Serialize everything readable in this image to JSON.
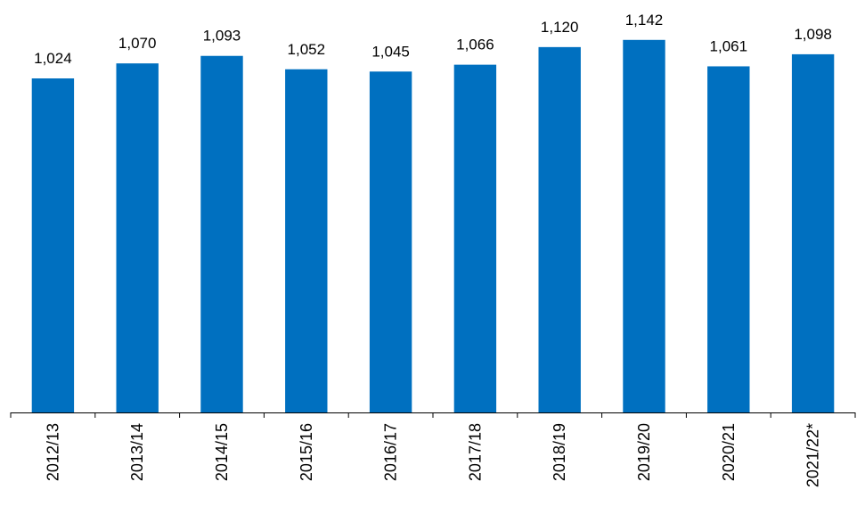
{
  "chart_data": {
    "type": "bar",
    "title": "",
    "xlabel": "",
    "ylabel": "",
    "categories": [
      "2012/13",
      "2013/14",
      "2014/15",
      "2015/16",
      "2016/17",
      "2017/18",
      "2018/19",
      "2019/20",
      "2020/21",
      "2021/22*"
    ],
    "values": [
      1024,
      1070,
      1093,
      1052,
      1045,
      1066,
      1120,
      1142,
      1061,
      1098
    ],
    "value_labels": [
      "1,024",
      "1,070",
      "1,093",
      "1,052",
      "1,045",
      "1,066",
      "1,120",
      "1,142",
      "1,061",
      "1,098"
    ],
    "ylim": [
      0,
      1200
    ],
    "grid": false,
    "legend": "none",
    "colors": {
      "bar": "#0070C0",
      "axis": "#000000"
    }
  }
}
